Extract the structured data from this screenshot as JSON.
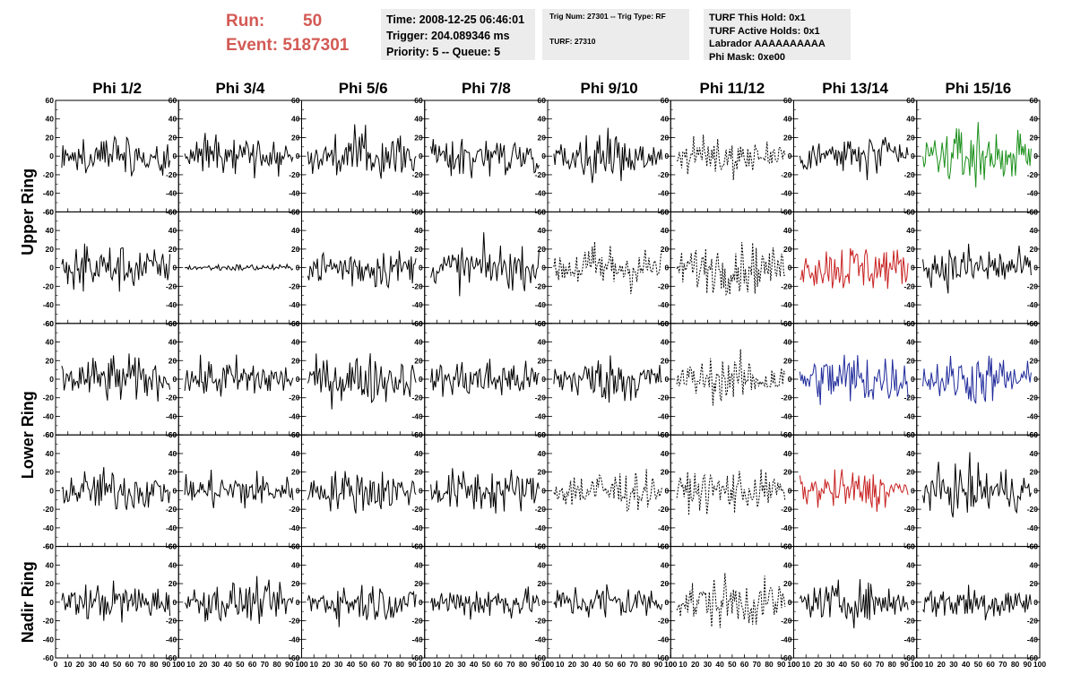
{
  "run_info": {
    "run_label": "Run:",
    "run_value": "50",
    "event_label": "Event:",
    "event_value": "5187301"
  },
  "time_box": {
    "time": "Time: 2008-12-25 06:46:01",
    "trigger": "Trigger: 204.089346 ms",
    "priority": "Priority: 5 -- Queue: 5"
  },
  "trig_box": {
    "line1": "Trig Num: 27301 -- Trig Type: RF",
    "line2": "TURF: 27310"
  },
  "turf_box": {
    "hold": "TURF This Hold: 0x1",
    "active": "TURF Active Holds: 0x1",
    "labrador": "Labrador AAAAAAAAAA",
    "phi_mask": "Phi Mask: 0xe00"
  },
  "colors": {
    "header_text": "#d35a55",
    "box_bg": "#ececec",
    "trace_default": "#000000",
    "trace_green": "#1a8f1a",
    "trace_red": "#c82020",
    "trace_blue": "#1f2a9a"
  },
  "chart_data": {
    "type": "line",
    "description_note": "",
    "columns": [
      "Phi 1/2",
      "Phi 3/4",
      "Phi 5/6",
      "Phi 7/8",
      "Phi 9/10",
      "Phi 11/12",
      "Phi 13/14",
      "Phi 15/16"
    ],
    "row_labels": [
      {
        "text": "Upper Ring",
        "rows": [
          0,
          1
        ]
      },
      {
        "text": "Lower Ring",
        "rows": [
          2,
          3
        ]
      },
      {
        "text": "Nadir Ring",
        "rows": [
          4
        ]
      }
    ],
    "xlim": [
      0,
      100
    ],
    "ylim": [
      -60,
      60
    ],
    "x_ticks": [
      0,
      10,
      20,
      30,
      40,
      50,
      60,
      70,
      80,
      90,
      100
    ],
    "x_tick_labels": [
      "0",
      "10",
      "20",
      "30",
      "40",
      "50",
      "60",
      "70",
      "80",
      "90",
      "100"
    ],
    "y_ticks": [
      -60,
      -40,
      -20,
      0,
      20,
      40,
      60
    ],
    "y_tick_labels": [
      "-60",
      "-40",
      "-20",
      "0",
      "20",
      "40",
      "60"
    ],
    "samples": 90,
    "panels": [
      [
        {
          "style": "solid",
          "color": "black",
          "amp": 12
        },
        {
          "style": "solid",
          "color": "black",
          "amp": 11
        },
        {
          "style": "solid",
          "color": "black",
          "amp": 13
        },
        {
          "style": "solid",
          "color": "black",
          "amp": 12
        },
        {
          "style": "solid",
          "color": "black",
          "amp": 12
        },
        {
          "style": "dotted",
          "color": "black",
          "amp": 11
        },
        {
          "style": "solid",
          "color": "black",
          "amp": 12
        },
        {
          "style": "solid",
          "color": "green",
          "amp": 15
        }
      ],
      [
        {
          "style": "solid",
          "color": "black",
          "amp": 13
        },
        {
          "style": "solid",
          "color": "black",
          "amp": 2
        },
        {
          "style": "solid",
          "color": "black",
          "amp": 12
        },
        {
          "style": "solid",
          "color": "black",
          "amp": 13
        },
        {
          "style": "dotted",
          "color": "black",
          "amp": 14
        },
        {
          "style": "dotted",
          "color": "black",
          "amp": 14
        },
        {
          "style": "solid",
          "color": "red",
          "amp": 14
        },
        {
          "style": "solid",
          "color": "black",
          "amp": 13
        }
      ],
      [
        {
          "style": "solid",
          "color": "black",
          "amp": 13
        },
        {
          "style": "solid",
          "color": "black",
          "amp": 12
        },
        {
          "style": "solid",
          "color": "black",
          "amp": 14
        },
        {
          "style": "solid",
          "color": "black",
          "amp": 12
        },
        {
          "style": "solid",
          "color": "black",
          "amp": 13
        },
        {
          "style": "dotted",
          "color": "black",
          "amp": 12
        },
        {
          "style": "solid",
          "color": "blue",
          "amp": 16
        },
        {
          "style": "solid",
          "color": "blue",
          "amp": 14
        }
      ],
      [
        {
          "style": "solid",
          "color": "black",
          "amp": 12
        },
        {
          "style": "solid",
          "color": "black",
          "amp": 11
        },
        {
          "style": "solid",
          "color": "black",
          "amp": 12
        },
        {
          "style": "solid",
          "color": "black",
          "amp": 13
        },
        {
          "style": "dotted",
          "color": "black",
          "amp": 12
        },
        {
          "style": "dotted",
          "color": "black",
          "amp": 12
        },
        {
          "style": "solid",
          "color": "red",
          "amp": 11
        },
        {
          "style": "solid",
          "color": "black",
          "amp": 14
        }
      ],
      [
        {
          "style": "solid",
          "color": "black",
          "amp": 11
        },
        {
          "style": "solid",
          "color": "black",
          "amp": 11
        },
        {
          "style": "solid",
          "color": "black",
          "amp": 11
        },
        {
          "style": "solid",
          "color": "black",
          "amp": 10
        },
        {
          "style": "solid",
          "color": "black",
          "amp": 11
        },
        {
          "style": "dotted",
          "color": "black",
          "amp": 14
        },
        {
          "style": "solid",
          "color": "black",
          "amp": 11
        },
        {
          "style": "solid",
          "color": "black",
          "amp": 11
        }
      ]
    ]
  }
}
